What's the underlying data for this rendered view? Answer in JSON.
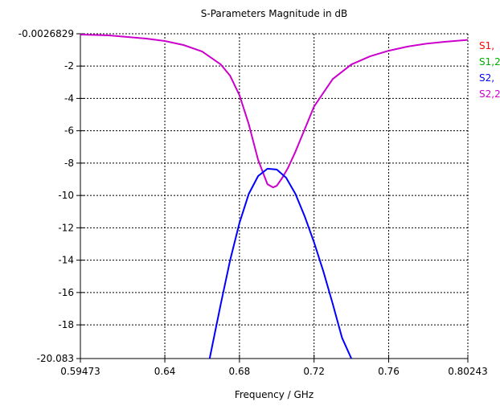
{
  "chart_data": {
    "type": "line",
    "title": "S-Parameters Magnitude in dB",
    "xlabel": "Frequency / GHz",
    "ylabel": "",
    "xlim": [
      0.59473,
      0.80243
    ],
    "ylim": [
      -20.083,
      -0.0026829
    ],
    "x_ticks": [
      "0.59473",
      "0.64",
      "0.68",
      "0.72",
      "0.76",
      "0.80243"
    ],
    "y_ticks": [
      "-0.0026829",
      "-2",
      "-4",
      "-6",
      "-8",
      "-10",
      "-12",
      "-14",
      "-16",
      "-18",
      "-20.083"
    ],
    "grid": true,
    "legend_position": "right",
    "colors": {
      "s11": "#ff0000",
      "s12": "#00b000",
      "s21": "#0000ff",
      "s22": "#cc00cc",
      "grid": "#000000",
      "axis": "#000000"
    },
    "legend": [
      {
        "label": "S1,",
        "color": "#ff0000"
      },
      {
        "label": "S1,2",
        "color": "#00b000"
      },
      {
        "label": "S2,",
        "color": "#0000ff"
      },
      {
        "label": "S2,2",
        "color": "#cc00cc"
      }
    ],
    "series": [
      {
        "name": "S2,2",
        "color": "#cc00cc",
        "x": [
          0.59473,
          0.61,
          0.62,
          0.63,
          0.64,
          0.65,
          0.66,
          0.67,
          0.675,
          0.68,
          0.685,
          0.69,
          0.695,
          0.698,
          0.7,
          0.703,
          0.706,
          0.71,
          0.715,
          0.72,
          0.73,
          0.74,
          0.75,
          0.76,
          0.77,
          0.78,
          0.79,
          0.80243
        ],
        "y": [
          -0.05,
          -0.1,
          -0.2,
          -0.3,
          -0.45,
          -0.7,
          -1.1,
          -1.9,
          -2.6,
          -3.8,
          -5.6,
          -7.8,
          -9.3,
          -9.5,
          -9.4,
          -8.9,
          -8.3,
          -7.3,
          -5.9,
          -4.5,
          -2.8,
          -1.9,
          -1.4,
          -1.05,
          -0.8,
          -0.62,
          -0.5,
          -0.38
        ]
      },
      {
        "name": "S2,",
        "color": "#0000ff",
        "x": [
          0.664,
          0.67,
          0.675,
          0.68,
          0.685,
          0.69,
          0.695,
          0.7,
          0.705,
          0.71,
          0.715,
          0.72,
          0.725,
          0.73,
          0.735,
          0.74
        ],
        "y": [
          -20.083,
          -16.7,
          -14.0,
          -11.7,
          -9.9,
          -8.8,
          -8.35,
          -8.4,
          -8.9,
          -9.9,
          -11.3,
          -12.9,
          -14.7,
          -16.7,
          -18.8,
          -20.083
        ]
      }
    ]
  }
}
